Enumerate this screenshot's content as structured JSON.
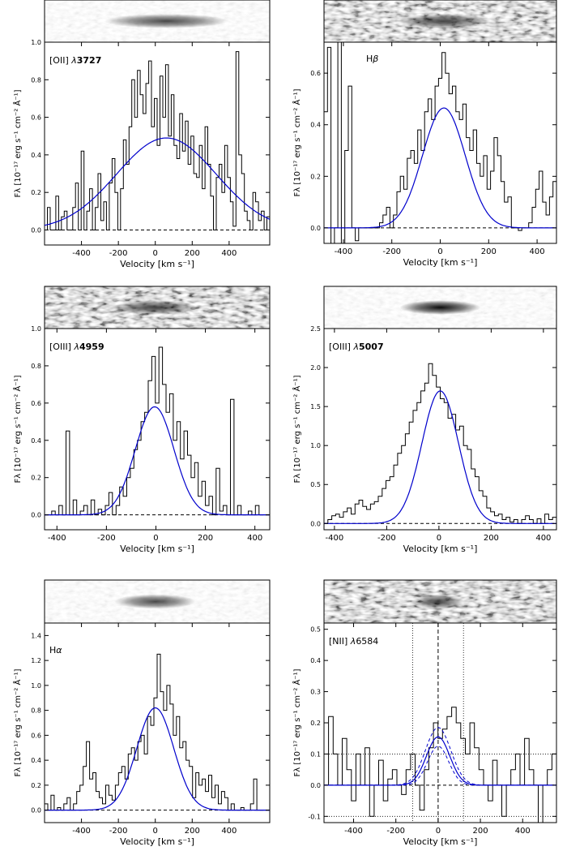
{
  "chart_data": [
    {
      "type": "line",
      "label": "[OII] λ3727",
      "label_parts": {
        "ion": "[OII] ",
        "lambda": "λ",
        "wave": "3727",
        "wave_bold": true
      },
      "xlabel": "Velocity [km s⁻¹]",
      "ylabel": "Fλ [10⁻¹⁷ erg s⁻¹ cm⁻² Å⁻¹]",
      "xlim": [
        -600,
        620
      ],
      "ylim": [
        -0.08,
        1.0
      ],
      "xticks": [
        -400,
        -200,
        0,
        200,
        400
      ],
      "yticks": [
        0.0,
        0.2,
        0.4,
        0.6,
        0.8
      ],
      "top_ytick": 1.0,
      "gauss": {
        "amp": 0.49,
        "mu": 60,
        "sigma": 270,
        "offset": 0
      },
      "step_y": [
        0.0,
        0.12,
        0.0,
        0.0,
        0.18,
        0.0,
        0.07,
        0.1,
        0.0,
        0.0,
        0.12,
        0.25,
        0.0,
        0.42,
        0.0,
        0.1,
        0.22,
        0.0,
        0.12,
        0.3,
        0.05,
        0.15,
        0.0,
        0.25,
        0.38,
        0.2,
        0.0,
        0.22,
        0.48,
        0.35,
        0.55,
        0.8,
        0.6,
        0.85,
        0.72,
        0.62,
        0.78,
        0.9,
        0.55,
        0.7,
        0.45,
        0.82,
        0.6,
        0.88,
        0.5,
        0.72,
        0.45,
        0.38,
        0.62,
        0.42,
        0.58,
        0.35,
        0.5,
        0.3,
        0.28,
        0.45,
        0.22,
        0.55,
        0.35,
        0.18,
        0.0,
        0.28,
        0.35,
        0.2,
        0.45,
        0.28,
        0.15,
        0.02,
        0.95,
        0.4,
        0.3,
        0.1,
        0.05,
        0.0,
        0.2,
        0.15,
        0.05,
        0.1,
        0.0,
        0.07
      ]
    },
    {
      "type": "line",
      "label": "Hβ",
      "label_parts": {
        "ion": "H",
        "lambda": "β",
        "wave": "",
        "wave_bold": false
      },
      "xlabel": "Velocity  [km s⁻¹]",
      "ylabel": "Fλ [10⁻¹⁷ erg s⁻¹ cm⁻² Å⁻¹]",
      "xlim": [
        -480,
        480
      ],
      "ylim": [
        -0.06,
        0.72
      ],
      "xticks": [
        -400,
        -200,
        0,
        200,
        400
      ],
      "yticks": [
        0.0,
        0.2,
        0.4,
        0.6
      ],
      "top_ytick": null,
      "gauss": {
        "amp": 0.465,
        "mu": 15,
        "sigma": 88,
        "offset": 0
      },
      "step_y": [
        0.45,
        0.7,
        -0.06,
        0.0,
        0.72,
        -0.06,
        0.3,
        0.55,
        0.0,
        -0.05,
        0.0,
        0.0,
        0.0,
        0.0,
        0.0,
        0.0,
        0.02,
        0.05,
        0.08,
        0.0,
        0.05,
        0.14,
        0.2,
        0.15,
        0.27,
        0.3,
        0.25,
        0.38,
        0.3,
        0.45,
        0.5,
        0.42,
        0.55,
        0.58,
        0.68,
        0.6,
        0.52,
        0.55,
        0.45,
        0.42,
        0.48,
        0.35,
        0.3,
        0.38,
        0.25,
        0.2,
        0.28,
        0.15,
        0.22,
        0.35,
        0.28,
        0.18,
        0.1,
        0.12,
        0.0,
        0.0,
        -0.01,
        0.0,
        0.0,
        0.02,
        0.08,
        0.15,
        0.22,
        0.1,
        0.05,
        0.12,
        0.18
      ]
    },
    {
      "type": "line",
      "label": "[OIII] λ4959",
      "label_parts": {
        "ion": "[OIII] ",
        "lambda": "λ",
        "wave": "4959",
        "wave_bold": true
      },
      "xlabel": "Velocity [km s⁻¹]",
      "ylabel": "Fλ [10⁻¹⁷ erg s⁻¹ cm⁻² Å⁻¹]",
      "xlim": [
        -450,
        460
      ],
      "ylim": [
        -0.08,
        1.0
      ],
      "xticks": [
        -400,
        -200,
        0,
        200,
        400
      ],
      "yticks": [
        0.0,
        0.2,
        0.4,
        0.6,
        0.8
      ],
      "top_ytick": 1.0,
      "gauss": {
        "amp": 0.58,
        "mu": -5,
        "sigma": 78,
        "offset": 0
      },
      "step_y": [
        0.0,
        0.0,
        0.02,
        0.0,
        0.05,
        0.0,
        0.45,
        0.0,
        0.08,
        0.0,
        0.02,
        0.05,
        0.0,
        0.08,
        0.0,
        0.03,
        0.0,
        0.05,
        0.12,
        0.0,
        0.05,
        0.15,
        0.1,
        0.2,
        0.25,
        0.35,
        0.4,
        0.5,
        0.55,
        0.72,
        0.85,
        0.6,
        0.9,
        0.7,
        0.55,
        0.65,
        0.4,
        0.5,
        0.3,
        0.45,
        0.32,
        0.2,
        0.28,
        0.1,
        0.18,
        0.05,
        0.1,
        0.0,
        0.25,
        0.02,
        0.05,
        0.0,
        0.62,
        0.0,
        0.05,
        0.0,
        0.0,
        0.02,
        0.0,
        0.05,
        0.0,
        0.0,
        0.0
      ]
    },
    {
      "type": "line",
      "label": "[OIII] λ5007",
      "label_parts": {
        "ion": "[OIII] ",
        "lambda": "λ",
        "wave": "5007",
        "wave_bold": true
      },
      "xlabel": "Velocity [km s⁻¹]",
      "ylabel": "Fλ [10⁻¹⁷ erg s⁻¹ cm⁻² Å⁻¹]",
      "xlim": [
        -440,
        450
      ],
      "ylim": [
        -0.08,
        2.5
      ],
      "xticks": [
        -400,
        -200,
        0,
        200,
        400
      ],
      "yticks": [
        0.0,
        0.5,
        1.0,
        1.5,
        2.0
      ],
      "top_ytick": 2.5,
      "gauss": {
        "amp": 1.7,
        "mu": 5,
        "sigma": 70,
        "offset": 0
      },
      "step_y": [
        0.0,
        0.05,
        0.1,
        0.12,
        0.08,
        0.15,
        0.2,
        0.12,
        0.25,
        0.3,
        0.22,
        0.18,
        0.25,
        0.28,
        0.35,
        0.45,
        0.55,
        0.6,
        0.75,
        0.9,
        1.0,
        1.15,
        1.3,
        1.45,
        1.55,
        1.7,
        1.8,
        2.05,
        1.9,
        1.75,
        1.6,
        1.55,
        1.35,
        1.4,
        1.2,
        1.25,
        1.0,
        0.95,
        0.7,
        0.6,
        0.42,
        0.35,
        0.2,
        0.15,
        0.1,
        0.12,
        0.05,
        0.08,
        0.02,
        0.05,
        0.0,
        0.05,
        0.1,
        0.05,
        0.0,
        0.06,
        0.0,
        0.12,
        0.05,
        0.08
      ]
    },
    {
      "type": "line",
      "label": "Hα",
      "label_parts": {
        "ion": "H",
        "lambda": "α",
        "wave": "",
        "wave_bold": false
      },
      "xlabel": "Velocity  [km s⁻¹]",
      "ylabel": "Fλ  [10⁻¹⁷ erg s⁻¹ cm⁻² Å⁻¹]",
      "xlim": [
        -600,
        620
      ],
      "ylim": [
        -0.1,
        1.5
      ],
      "xticks": [
        -400,
        -200,
        0,
        200,
        400
      ],
      "yticks": [
        0.0,
        0.2,
        0.4,
        0.6,
        0.8,
        1.0,
        1.2,
        1.4
      ],
      "top_ytick": null,
      "gauss": {
        "amp": 0.82,
        "mu": 0,
        "sigma": 100,
        "offset": 0
      },
      "step_y": [
        0.05,
        0.0,
        0.12,
        0.0,
        0.02,
        0.0,
        0.05,
        0.1,
        0.0,
        0.05,
        0.15,
        0.2,
        0.35,
        0.55,
        0.25,
        0.3,
        0.15,
        0.1,
        0.05,
        0.2,
        0.12,
        0.08,
        0.2,
        0.3,
        0.35,
        0.25,
        0.45,
        0.5,
        0.4,
        0.55,
        0.6,
        0.45,
        0.75,
        0.68,
        0.9,
        1.25,
        0.95,
        0.8,
        1.0,
        0.85,
        0.6,
        0.75,
        0.5,
        0.55,
        0.4,
        0.35,
        0.1,
        0.3,
        0.2,
        0.25,
        0.15,
        0.28,
        0.1,
        0.2,
        0.05,
        0.15,
        0.1,
        0.0,
        0.05,
        0.0,
        0.0,
        0.02,
        0.0,
        0.0,
        0.05,
        0.25,
        0.0,
        0.0,
        0.0,
        0.0
      ]
    },
    {
      "type": "line",
      "label": "[NII] λ6584",
      "label_parts": {
        "ion": "[NII] ",
        "lambda": "λ",
        "wave": "6584",
        "wave_bold": false
      },
      "xlabel": "Velocity [km s⁻¹]",
      "ylabel": "Fλ [10⁻¹⁷ erg s⁻¹ cm⁻² Å⁻¹]",
      "xlim": [
        -540,
        560
      ],
      "ylim": [
        -0.12,
        0.52
      ],
      "xticks": [
        -400,
        -200,
        0,
        200,
        400
      ],
      "yticks": [
        -0.1,
        0.0,
        0.1,
        0.2,
        0.3,
        0.4,
        0.5
      ],
      "top_ytick": null,
      "gauss": {
        "amp": 0.155,
        "mu": 0,
        "sigma": 55,
        "offset": 0
      },
      "gauss_upper": {
        "amp": 0.185,
        "mu": 0,
        "sigma": 60
      },
      "gauss_lower": {
        "amp": 0.125,
        "mu": 0,
        "sigma": 50
      },
      "hlines": [
        0.1,
        -0.1
      ],
      "vlines_dotted": [
        -120,
        120
      ],
      "vline_dashed": 0,
      "step_y": [
        0.0,
        0.22,
        0.1,
        0.0,
        0.15,
        0.05,
        -0.05,
        0.1,
        0.0,
        0.12,
        -0.1,
        0.0,
        0.08,
        -0.05,
        0.02,
        0.05,
        0.0,
        -0.03,
        0.05,
        0.1,
        0.0,
        -0.08,
        0.05,
        0.12,
        0.2,
        0.15,
        0.18,
        0.22,
        0.25,
        0.2,
        0.15,
        0.1,
        0.2,
        0.12,
        0.05,
        0.0,
        -0.05,
        0.08,
        0.0,
        -0.1,
        0.0,
        0.05,
        0.1,
        0.0,
        0.15,
        0.05,
        0.0,
        -0.12,
        0.0,
        0.05,
        0.1
      ]
    }
  ]
}
